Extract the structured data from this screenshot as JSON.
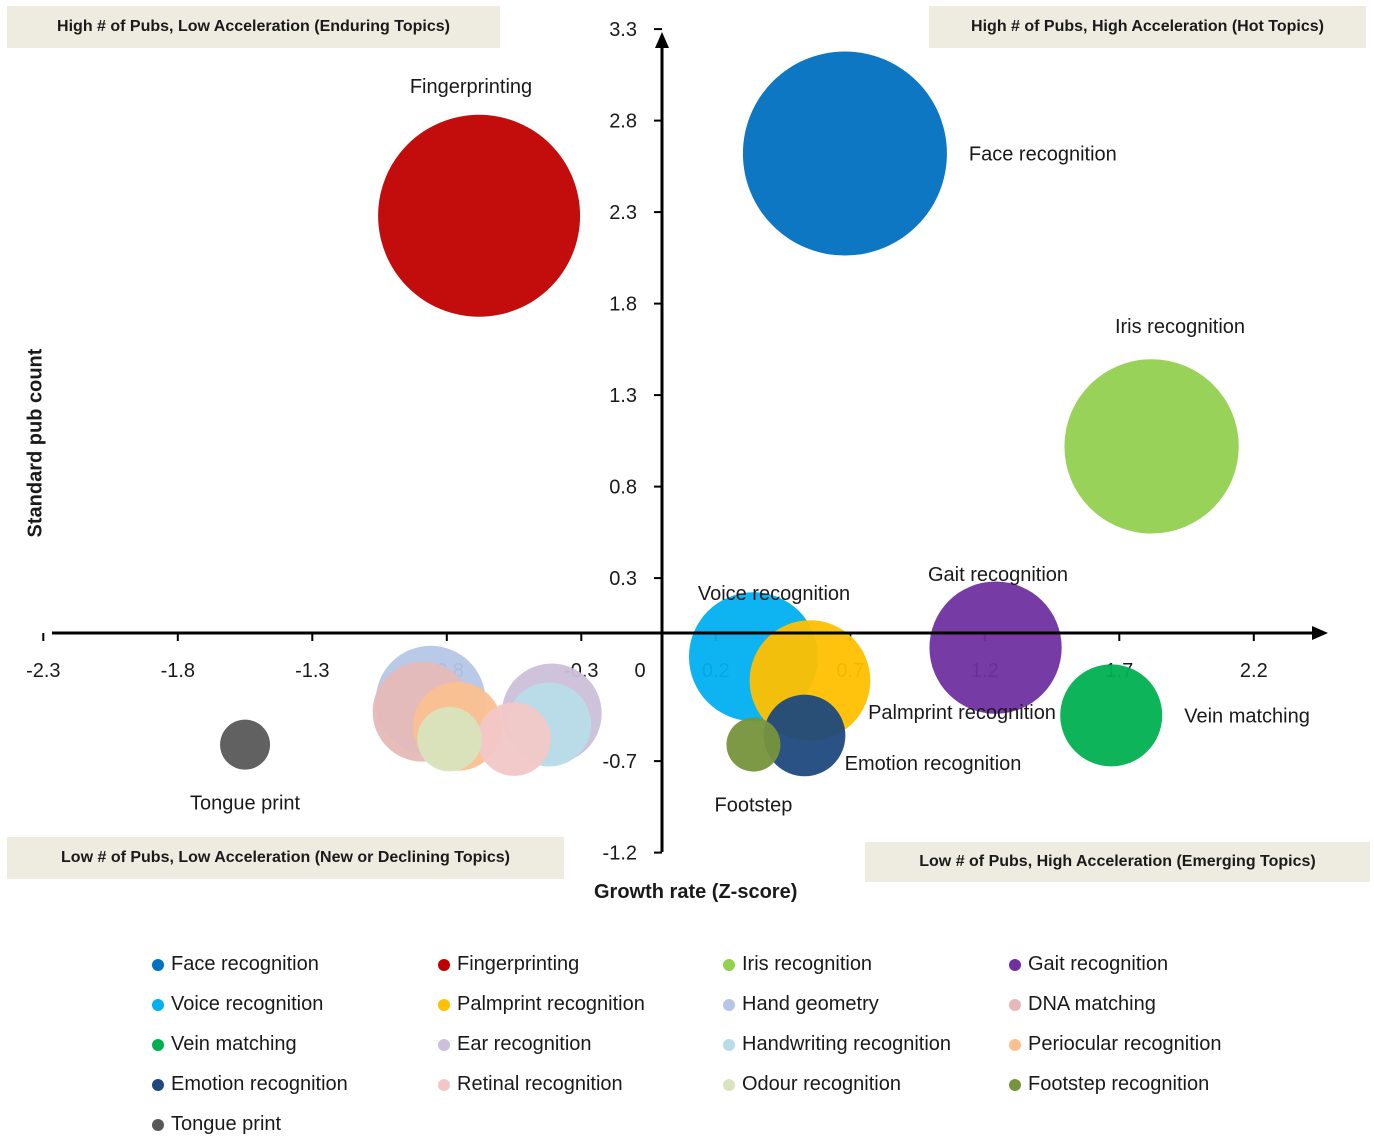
{
  "chart_data": {
    "type": "bubble",
    "xlabel": "Growth rate (Z-score)",
    "ylabel": "Standard pub count",
    "xlim": [
      -2.3,
      2.6
    ],
    "ylim": [
      -1.2,
      3.3
    ],
    "x_ticks": [
      "-2.3",
      "-1.8",
      "-1.3",
      "-0.8",
      "-0.3",
      "0.2",
      "0.7",
      "1.2",
      "1.7",
      "2.2"
    ],
    "y_ticks": [
      "-1.2",
      "-0.7",
      "0.3",
      "0.8",
      "1.3",
      "1.8",
      "2.3",
      "2.8",
      "3.3"
    ],
    "origin_label": "0",
    "quadrants": {
      "top_left": "High # of Pubs, Low Acceleration (Enduring Topics)",
      "top_right": "High # of Pubs, High Acceleration (Hot Topics)",
      "bottom_left": "Low # of Pubs, Low Acceleration (New or Declining Topics)",
      "bottom_right": "Low # of Pubs, High Acceleration (Emerging Topics)"
    },
    "legend_position": "bottom",
    "series": [
      {
        "name": "Face recognition",
        "color": "#0070c0",
        "x": 0.68,
        "y": 2.62,
        "size": 100,
        "label": "Face recognition",
        "label_pos": "right"
      },
      {
        "name": "Fingerprinting",
        "color": "#c00000",
        "x": -0.68,
        "y": 2.28,
        "size": 98,
        "label": "Fingerprinting",
        "label_pos": "above"
      },
      {
        "name": "Iris recognition",
        "color": "#92d050",
        "x": 1.82,
        "y": 1.02,
        "size": 73,
        "label": "Iris recognition",
        "label_pos": "above"
      },
      {
        "name": "Gait recognition",
        "color": "#7030a0",
        "x": 1.24,
        "y": -0.08,
        "size": 42,
        "label": "Gait recognition",
        "label_pos": "above"
      },
      {
        "name": "Voice recognition",
        "color": "#00b0f0",
        "x": 0.34,
        "y": -0.13,
        "size": 40,
        "label": "Voice recognition",
        "label_pos": "above"
      },
      {
        "name": "Palmprint recognition",
        "color": "#ffc000",
        "x": 0.55,
        "y": -0.26,
        "size": 35,
        "label": "Palmprint recognition",
        "label_pos": "below-right"
      },
      {
        "name": "Hand geometry",
        "color": "#b4c7e7",
        "x": -0.86,
        "y": -0.37,
        "size": 29
      },
      {
        "name": "DNA matching",
        "color": "#e6b9b8",
        "x": -0.89,
        "y": -0.43,
        "size": 24
      },
      {
        "name": "Vein matching",
        "color": "#00b050",
        "x": 1.67,
        "y": -0.45,
        "size": 25,
        "label": "Vein matching",
        "label_pos": "right"
      },
      {
        "name": "Ear recognition",
        "color": "#ccc0da",
        "x": -0.41,
        "y": -0.44,
        "size": 24
      },
      {
        "name": "Handwriting recognition",
        "color": "#b7dde8",
        "x": -0.42,
        "y": -0.5,
        "size": 17
      },
      {
        "name": "Periocular recognition",
        "color": "#fac090",
        "x": -0.76,
        "y": -0.51,
        "size": 19
      },
      {
        "name": "Emotion recognition",
        "color": "#1f497d",
        "x": 0.53,
        "y": -0.56,
        "size": 16,
        "label": "Emotion recognition",
        "label_pos": "below-right"
      },
      {
        "name": "Retinal recognition",
        "color": "#f2c7c7",
        "x": -0.55,
        "y": -0.58,
        "size": 13
      },
      {
        "name": "Odour recognition",
        "color": "#d7e4bd",
        "x": -0.79,
        "y": -0.58,
        "size": 10
      },
      {
        "name": "Footstep recognition",
        "color": "#77933c",
        "x": 0.34,
        "y": -0.61,
        "size": 7,
        "label": "Footstep",
        "label_pos": "below"
      },
      {
        "name": "Tongue print",
        "color": "#595959",
        "x": -1.55,
        "y": -0.61,
        "size": 6,
        "label": "Tongue print",
        "label_pos": "below"
      }
    ]
  }
}
